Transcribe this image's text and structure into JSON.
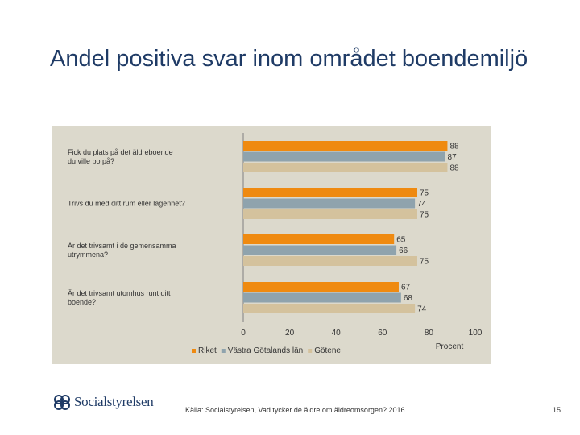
{
  "slide": {
    "title": "Andel positiva svar inom området boendemiljö",
    "source": "Källa: Socialstyrelsen, Vad tycker de äldre om äldreomsorgen? 2016",
    "page_number": "15",
    "logo_text": "Socialstyrelsen"
  },
  "chart_data": {
    "type": "bar",
    "orientation": "horizontal",
    "categories": [
      [
        "Fick du plats på det äldreboende",
        "du ville bo på?"
      ],
      [
        "Trivs du med ditt rum eller lägenhet?"
      ],
      [
        "Är det trivsamt i de gemensamma",
        "utrymmena?"
      ],
      [
        "Är det trivsamt utomhus runt ditt",
        "boende?"
      ]
    ],
    "series": [
      {
        "name": "Riket",
        "color": "#ef8a10",
        "values": [
          88,
          75,
          65,
          67
        ]
      },
      {
        "name": "Västra Götalands län",
        "color": "#8fa3ad",
        "values": [
          87,
          74,
          66,
          68
        ]
      },
      {
        "name": "Götene",
        "color": "#d4c29d",
        "values": [
          88,
          75,
          75,
          74
        ]
      }
    ],
    "xlim": [
      0,
      100
    ],
    "xticks": [
      0,
      20,
      40,
      60,
      80,
      100
    ],
    "xlabel": "Procent",
    "legend_position": "bottom",
    "grid": false
  }
}
